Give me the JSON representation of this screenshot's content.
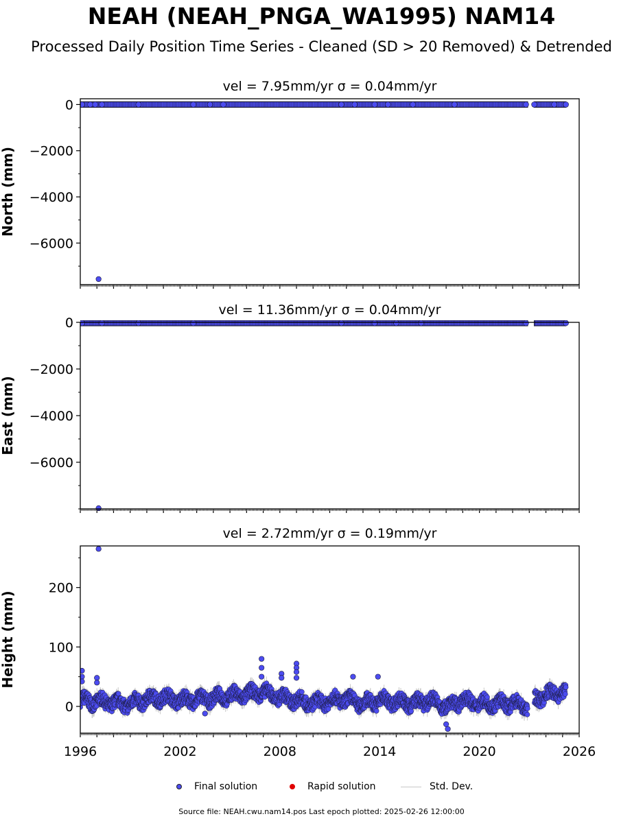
{
  "header": {
    "title": "NEAH (NEAH_PNGA_WA1995) NAM14",
    "subtitle": "Processed Daily Position Time Series - Cleaned (SD > 20 Removed) & Detrended"
  },
  "legend": {
    "final": "Final solution",
    "rapid": "Rapid solution",
    "std": "Std. Dev."
  },
  "footer": "Source file: NEAH.cwu.nam14.pos  Last epoch plotted: 2025-02-26 12:00:00",
  "colors": {
    "final": "#4c4cf0",
    "rapid": "#e00000",
    "std": "#c8c8c8",
    "edge": "#1a1a3a"
  },
  "chart_data": [
    {
      "type": "scatter",
      "title": "vel = 7.95mm/yr   σ = 0.04mm/yr",
      "ylabel": "North (mm)",
      "xlim": [
        1996,
        2026
      ],
      "ylim": [
        -7800,
        250
      ],
      "yticks": [
        0,
        -2000,
        -4000,
        -6000
      ],
      "xticks": [],
      "series": [
        {
          "name": "Final solution",
          "outliers": [
            [
              1997.1,
              -7560
            ]
          ],
          "clusters": [
            [
              1996.1,
              0
            ],
            [
              1996.6,
              0
            ],
            [
              1996.9,
              0
            ],
            [
              1997.3,
              0
            ],
            [
              1999.5,
              0
            ],
            [
              2002.8,
              0
            ],
            [
              2003.8,
              0
            ],
            [
              2004.6,
              0
            ],
            [
              2011.7,
              0
            ],
            [
              2012.5,
              0
            ],
            [
              2013.7,
              0
            ],
            [
              2014.5,
              0
            ],
            [
              2016.0,
              0
            ],
            [
              2018.5,
              0
            ],
            [
              2022.8,
              0
            ],
            [
              2023.3,
              0
            ],
            [
              2024.5,
              0
            ],
            [
              2025.2,
              0
            ]
          ],
          "segments": [
            [
              1996.0,
              2022.9
            ],
            [
              2023.3,
              2025.2
            ]
          ]
        }
      ]
    },
    {
      "type": "scatter",
      "title": "vel = 11.36mm/yr   σ = 0.04mm/yr",
      "ylabel": "East (mm)",
      "xlim": [
        1996,
        2026
      ],
      "ylim": [
        -8000,
        0
      ],
      "yticks": [
        0,
        -2000,
        -4000,
        -6000
      ],
      "xticks": [],
      "series": [
        {
          "name": "Final solution",
          "outliers": [
            [
              1997.1,
              -8000
            ]
          ],
          "clusters": [
            [
              1996.1,
              -30
            ],
            [
              1997.3,
              -30
            ],
            [
              1999.5,
              -30
            ],
            [
              2002.8,
              -30
            ],
            [
              2011.7,
              -30
            ],
            [
              2013.7,
              -30
            ],
            [
              2015.0,
              -30
            ],
            [
              2016.5,
              -30
            ],
            [
              2022.8,
              -30
            ],
            [
              2025.2,
              -30
            ]
          ],
          "segments": [
            [
              1996.0,
              2022.9
            ],
            [
              2023.3,
              2025.2
            ]
          ]
        }
      ]
    },
    {
      "type": "scatter",
      "title": "vel = 2.72mm/yr   σ = 0.19mm/yr",
      "ylabel": "Height (mm)",
      "xlabel": "",
      "xlim": [
        1996,
        2026
      ],
      "ylim": [
        -45,
        270
      ],
      "yticks": [
        0,
        100,
        200
      ],
      "xticks": [
        1996,
        2002,
        2008,
        2014,
        2020,
        2026
      ],
      "series": [
        {
          "name": "Final solution",
          "baseline": [
            [
              1996.0,
              10
            ],
            [
              1997.0,
              8
            ],
            [
              1998.0,
              6
            ],
            [
              1999.0,
              4
            ],
            [
              2000.0,
              12
            ],
            [
              2001.0,
              15
            ],
            [
              2002.0,
              10
            ],
            [
              2003.0,
              12
            ],
            [
              2004.0,
              14
            ],
            [
              2005.0,
              18
            ],
            [
              2006.0,
              20
            ],
            [
              2006.9,
              25
            ],
            [
              2008.0,
              15
            ],
            [
              2009.0,
              10
            ],
            [
              2010.0,
              5
            ],
            [
              2011.0,
              10
            ],
            [
              2012.0,
              12
            ],
            [
              2013.0,
              5
            ],
            [
              2014.0,
              10
            ],
            [
              2015.0,
              8
            ],
            [
              2016.0,
              5
            ],
            [
              2017.0,
              10
            ],
            [
              2018.0,
              0
            ],
            [
              2019.0,
              10
            ],
            [
              2020.0,
              5
            ],
            [
              2021.0,
              5
            ],
            [
              2022.0,
              5
            ],
            [
              2022.9,
              0
            ],
            [
              2023.3,
              10
            ],
            [
              2024.0,
              20
            ],
            [
              2025.2,
              25
            ]
          ],
          "gaps": [
            [
              2022.9,
              2023.3
            ]
          ],
          "outliers": [
            [
              1997.1,
              265
            ],
            [
              1996.1,
              60
            ],
            [
              1996.1,
              50
            ],
            [
              1996.1,
              42
            ],
            [
              1997.0,
              48
            ],
            [
              1997.0,
              40
            ],
            [
              2006.9,
              80
            ],
            [
              2006.9,
              65
            ],
            [
              2006.9,
              50
            ],
            [
              2008.1,
              55
            ],
            [
              2008.1,
              48
            ],
            [
              2009.0,
              72
            ],
            [
              2009.0,
              65
            ],
            [
              2009.0,
              58
            ],
            [
              2009.0,
              48
            ],
            [
              2012.4,
              50
            ],
            [
              2013.9,
              50
            ],
            [
              2018.0,
              -30
            ],
            [
              2018.1,
              -38
            ],
            [
              2003.5,
              -12
            ]
          ],
          "spread": 14
        }
      ]
    }
  ]
}
